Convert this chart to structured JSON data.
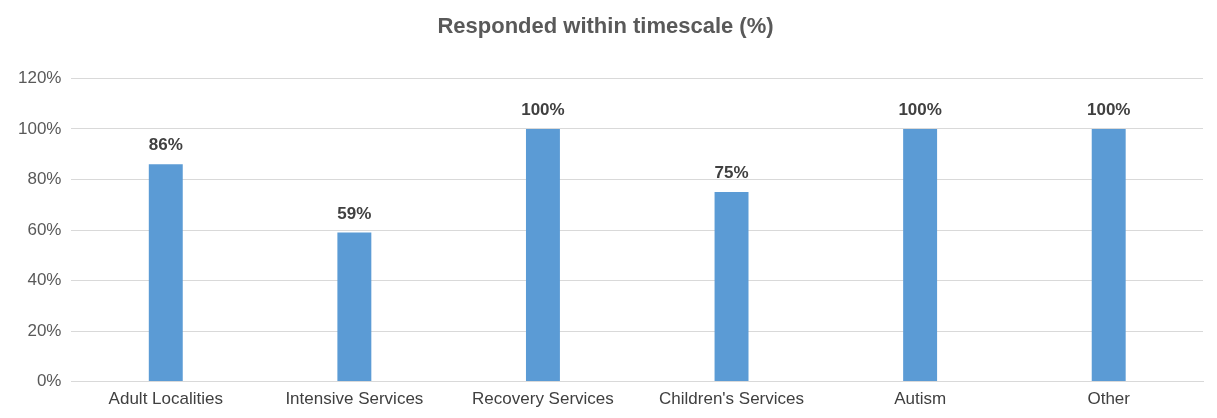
{
  "chart_data": {
    "type": "bar",
    "title": "Responded within timescale (%)",
    "categories": [
      "Adult Localities",
      "Intensive Services",
      "Recovery Services",
      "Children's Services",
      "Autism",
      "Other"
    ],
    "values": [
      86,
      59,
      100,
      75,
      100,
      100
    ],
    "value_labels": [
      "86%",
      "59%",
      "100%",
      "75%",
      "100%",
      "100%"
    ],
    "color": "#5b9bd5",
    "ylim": [
      0,
      120
    ],
    "yticks": [
      {
        "value": 0,
        "label": "0%"
      },
      {
        "value": 20,
        "label": "20%"
      },
      {
        "value": 40,
        "label": "40%"
      },
      {
        "value": 60,
        "label": "60%"
      },
      {
        "value": 80,
        "label": "80%"
      },
      {
        "value": 100,
        "label": "100%"
      },
      {
        "value": 120,
        "label": "120%"
      }
    ],
    "grid": "y",
    "legend": false
  }
}
